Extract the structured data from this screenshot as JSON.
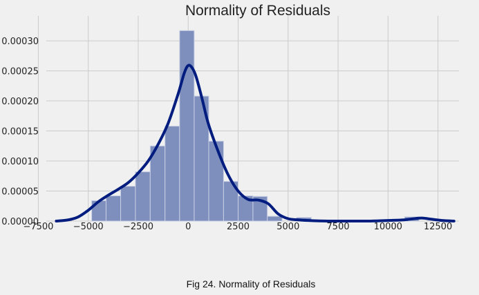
{
  "caption": "Fig 24. Normality of Residuals",
  "chart_data": {
    "type": "histogram",
    "title": "Normality of Residuals",
    "xlabel": "",
    "ylabel": "",
    "xlim": [
      -7100,
      13550
    ],
    "ylim": [
      0,
      0.00033
    ],
    "grid": true,
    "xticks": [
      -7500,
      -5000,
      -2500,
      0,
      2500,
      5000,
      7500,
      10000,
      12500
    ],
    "xtick_labels": [
      "−7500",
      "−5000",
      "−2500",
      "0",
      "2500",
      "5000",
      "7500",
      "10000",
      "12500"
    ],
    "yticks": [
      0,
      5e-05,
      0.0001,
      0.00015,
      0.0002,
      0.00025,
      0.0003
    ],
    "ytick_labels": [
      "0.00000",
      "0.00005",
      "0.00010",
      "0.00015",
      "0.00020",
      "0.00025",
      "0.00030"
    ],
    "bins": [
      {
        "x0": -4830,
        "x1": -4110,
        "density": 3.4e-05
      },
      {
        "x0": -4110,
        "x1": -3380,
        "density": 4.2e-05
      },
      {
        "x0": -3380,
        "x1": -2640,
        "density": 5.8e-05
      },
      {
        "x0": -2640,
        "x1": -1900,
        "density": 8.2e-05
      },
      {
        "x0": -1900,
        "x1": -1160,
        "density": 0.000125
      },
      {
        "x0": -1160,
        "x1": -430,
        "density": 0.000158
      },
      {
        "x0": -430,
        "x1": 300,
        "density": 0.000317
      },
      {
        "x0": 300,
        "x1": 1030,
        "density": 0.000208
      },
      {
        "x0": 1030,
        "x1": 1770,
        "density": 0.000133
      },
      {
        "x0": 1770,
        "x1": 2500,
        "density": 6.6e-05
      },
      {
        "x0": 2500,
        "x1": 3240,
        "density": 4.2e-05
      },
      {
        "x0": 3240,
        "x1": 3960,
        "density": 4.1e-05
      },
      {
        "x0": 3960,
        "x1": 4700,
        "density": 8e-06
      },
      {
        "x0": 5420,
        "x1": 6160,
        "density": 6e-06
      },
      {
        "x0": 10830,
        "x1": 11550,
        "density": 7e-06
      }
    ],
    "kde": {
      "x": [
        -6600,
        -6000,
        -5500,
        -5000,
        -4500,
        -4000,
        -3500,
        -3000,
        -2500,
        -2000,
        -1500,
        -1000,
        -500,
        -200,
        0,
        200,
        400,
        700,
        1000,
        1500,
        2000,
        2500,
        3000,
        3500,
        4000,
        4500,
        5000,
        5500,
        6000,
        7000,
        8000,
        9000,
        10000,
        10800,
        11300,
        11700,
        12200,
        12700,
        13300
      ],
      "y": [
        0,
        2e-06,
        7e-06,
        1.8e-05,
        3.2e-05,
        4.3e-05,
        5.3e-05,
        6.4e-05,
        8e-05,
        0.0001,
        0.000128,
        0.000163,
        0.000212,
        0.000246,
        0.000259,
        0.000255,
        0.00024,
        0.000203,
        0.000163,
        0.000116,
        7.7e-05,
        5e-05,
        3.6e-05,
        3.5e-05,
        2.9e-05,
        1.2e-05,
        4e-06,
        2e-06,
        1e-06,
        0,
        0,
        0,
        1e-06,
        2e-06,
        4e-06,
        5e-06,
        3e-06,
        1e-06,
        0
      ]
    },
    "colors": {
      "bar_fill": "#7f8fbd",
      "bar_edge": "#c8cfe4",
      "kde_line": "#001c7f",
      "grid": "#cbcbcb",
      "background": "#f0f0f0"
    }
  }
}
